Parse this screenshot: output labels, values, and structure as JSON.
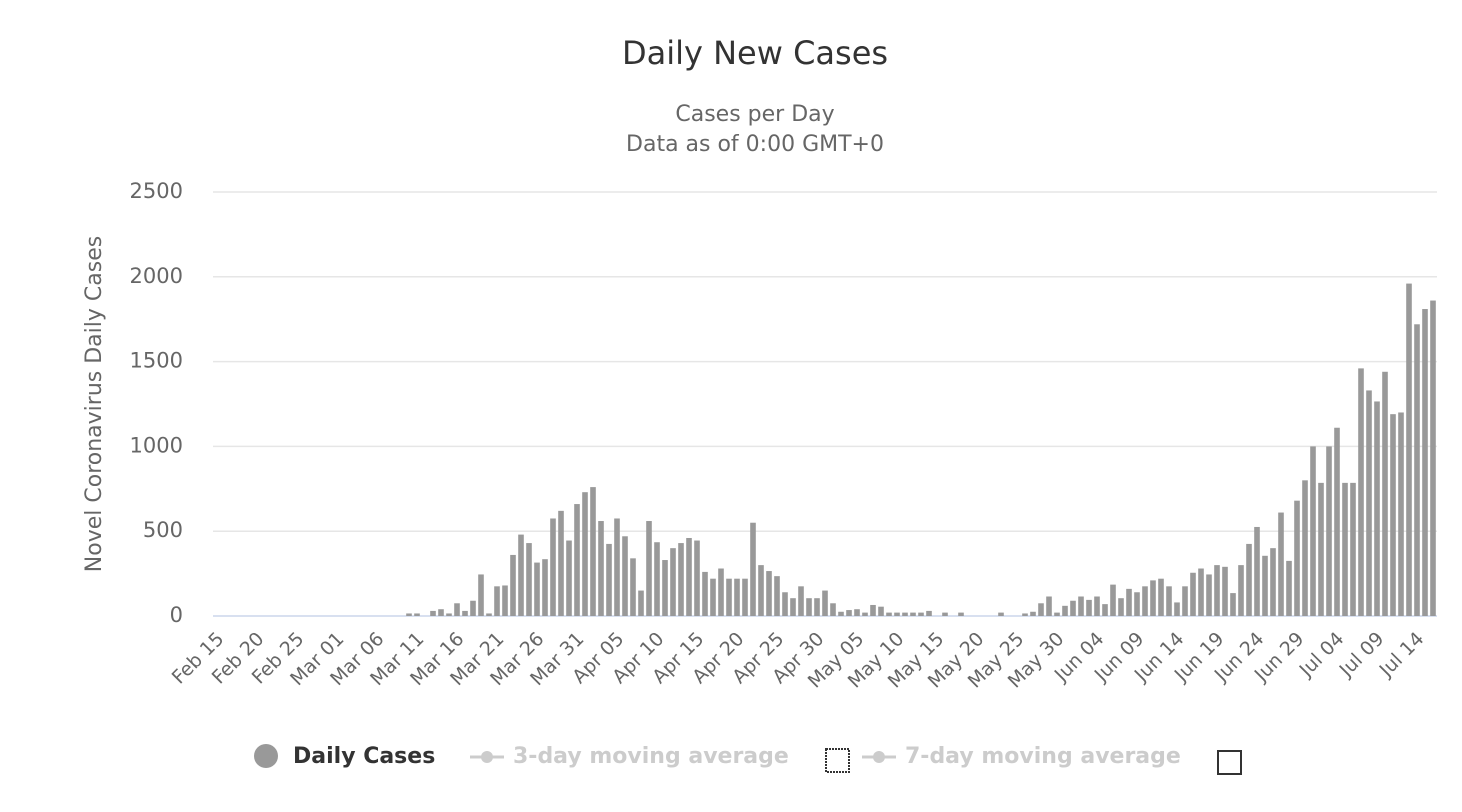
{
  "chart_data": {
    "type": "bar",
    "title": "Daily New Cases",
    "subtitle": [
      "Cases per Day",
      "Data as of 0:00 GMT+0"
    ],
    "y_label": "Novel Coronavirus Daily Cases",
    "categories": [
      "Feb 15",
      null,
      null,
      null,
      null,
      "Feb 20",
      null,
      null,
      null,
      null,
      "Feb 25",
      null,
      null,
      null,
      null,
      "Mar 01",
      null,
      null,
      null,
      null,
      "Mar 06",
      null,
      null,
      null,
      null,
      "Mar 11",
      null,
      null,
      null,
      null,
      "Mar 16",
      null,
      null,
      null,
      null,
      "Mar 21",
      null,
      null,
      null,
      null,
      "Mar 26",
      null,
      null,
      null,
      null,
      "Mar 31",
      null,
      null,
      null,
      null,
      "Apr 05",
      null,
      null,
      null,
      null,
      "Apr 10",
      null,
      null,
      null,
      null,
      "Apr 15",
      null,
      null,
      null,
      null,
      "Apr 20",
      null,
      null,
      null,
      null,
      "Apr 25",
      null,
      null,
      null,
      null,
      "Apr 30",
      null,
      null,
      null,
      null,
      "May 05",
      null,
      null,
      null,
      null,
      "May 10",
      null,
      null,
      null,
      null,
      "May 15",
      null,
      null,
      null,
      null,
      "May 20",
      null,
      null,
      null,
      null,
      "May 25",
      null,
      null,
      null,
      null,
      "May 30",
      null,
      null,
      null,
      null,
      "Jun 04",
      null,
      null,
      null,
      null,
      "Jun 09",
      null,
      null,
      null,
      null,
      "Jun 14",
      null,
      null,
      null,
      null,
      "Jun 19",
      null,
      null,
      null,
      null,
      "Jun 24",
      null,
      null,
      null,
      null,
      "Jun 29",
      null,
      null,
      null,
      null,
      "Jul 04",
      null,
      null,
      null,
      null,
      "Jul 09",
      null,
      null,
      null,
      null,
      "Jul 14",
      null,
      null
    ],
    "series": [
      {
        "name": "Daily Cases",
        "color": "#999999",
        "values": [
          0,
          0,
          0,
          0,
          0,
          0,
          0,
          0,
          0,
          0,
          0,
          0,
          0,
          0,
          0,
          0,
          0,
          0,
          0,
          0,
          0,
          0,
          0,
          0,
          15,
          15,
          0,
          30,
          40,
          15,
          75,
          30,
          90,
          245,
          15,
          175,
          180,
          360,
          480,
          430,
          315,
          335,
          575,
          620,
          445,
          660,
          730,
          760,
          560,
          425,
          575,
          470,
          340,
          150,
          560,
          435,
          330,
          400,
          430,
          460,
          445,
          260,
          220,
          280,
          220,
          220,
          220,
          550,
          300,
          265,
          235,
          140,
          105,
          175,
          105,
          105,
          150,
          75,
          25,
          35,
          40,
          20,
          65,
          55,
          20,
          20,
          20,
          20,
          20,
          30,
          0,
          20,
          0,
          20,
          0,
          0,
          0,
          0,
          20,
          0,
          0,
          15,
          25,
          75,
          115,
          20,
          60,
          90,
          115,
          95,
          115,
          70,
          185,
          105,
          160,
          140,
          175,
          210,
          220,
          175,
          80,
          175,
          255,
          280,
          245,
          300,
          290,
          135,
          300,
          425,
          525,
          355,
          400,
          610,
          325,
          680,
          800,
          1000,
          785,
          1000,
          1110,
          785,
          785,
          1460,
          1330,
          1265,
          1440,
          1190,
          1200,
          1960,
          1720,
          1810,
          1860
        ]
      }
    ],
    "legend_inactive": [
      "3-day moving average",
      "7-day moving average"
    ],
    "ylim": [
      0,
      2500
    ],
    "yticks": [
      0,
      500,
      1000,
      1500,
      2000,
      2500
    ],
    "grid": true
  }
}
